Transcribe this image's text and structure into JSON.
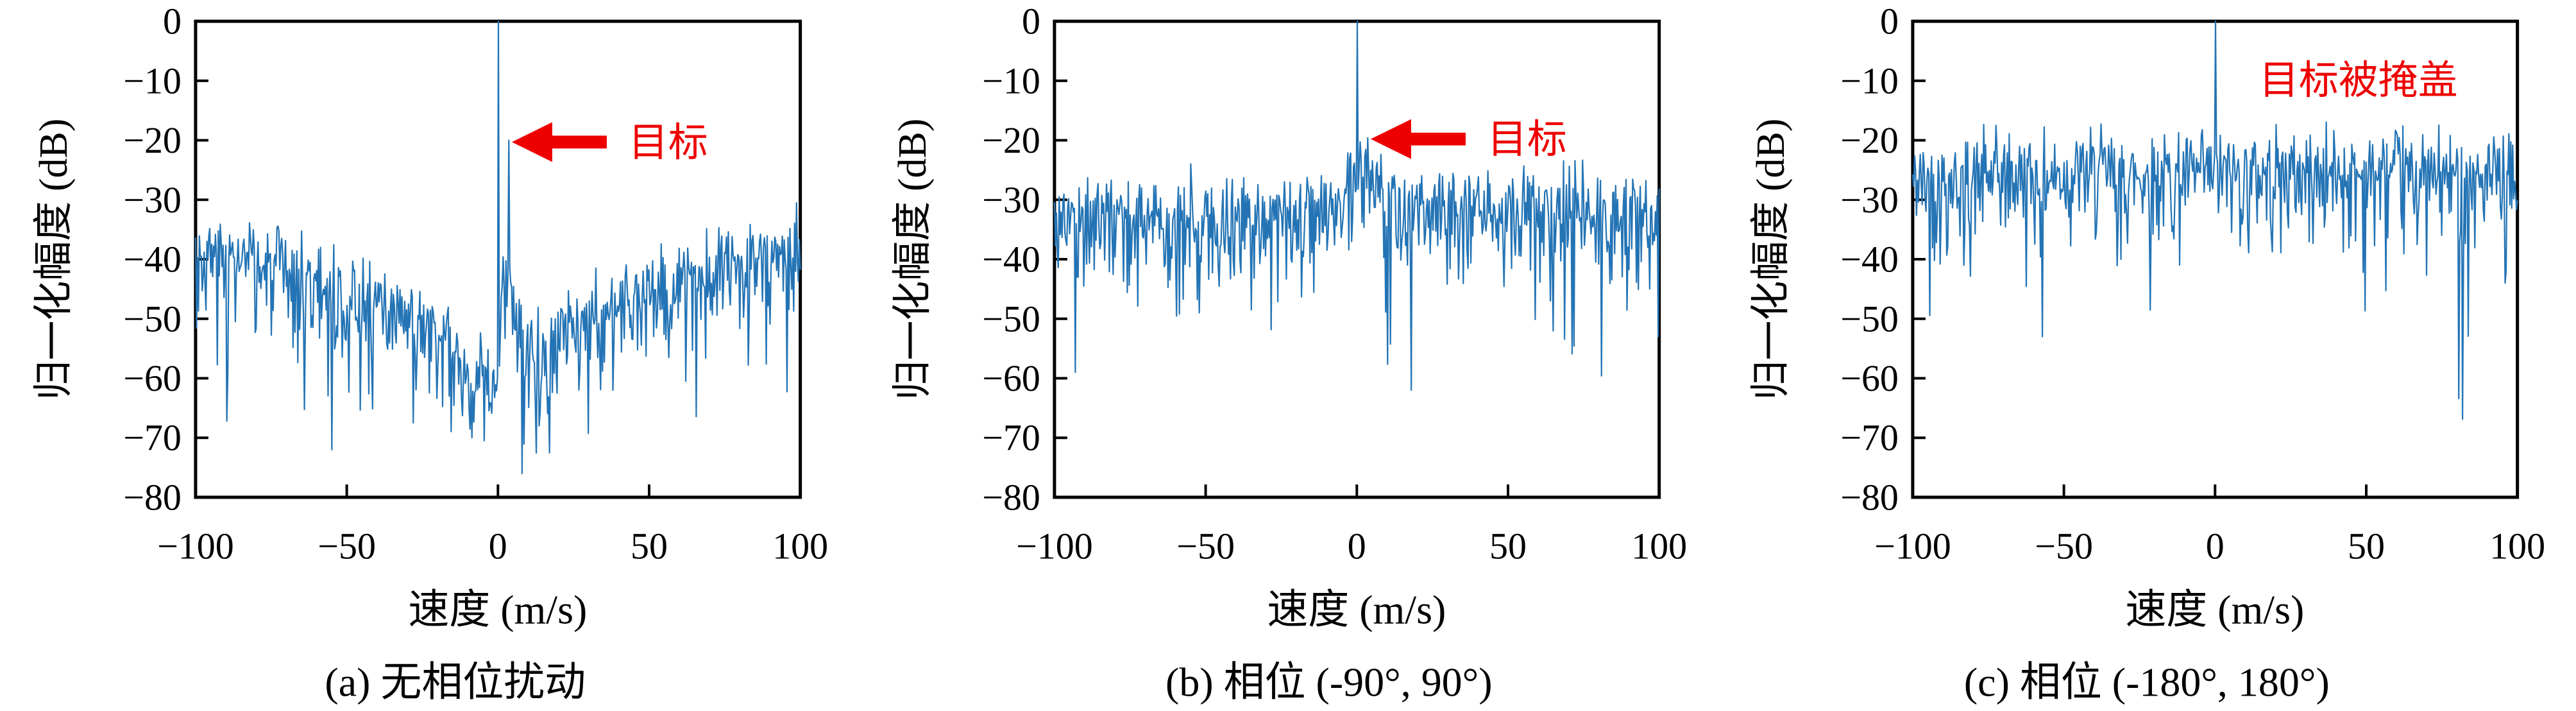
{
  "colors": {
    "trace": "#2474b5",
    "annotation": "#ee0000",
    "axis": "#000000",
    "background": "#ffffff"
  },
  "chart_data": [
    {
      "id": "a",
      "type": "line",
      "caption": "(a) 无相位扰动",
      "xlabel": "速度 (m/s)",
      "ylabel": "归一化幅度 (dB)",
      "xlim": [
        -100,
        100
      ],
      "ylim": [
        -80,
        0
      ],
      "xticks": [
        -100,
        -50,
        0,
        50,
        100
      ],
      "yticks": [
        0,
        -10,
        -20,
        -30,
        -40,
        -50,
        -60,
        -70,
        -80
      ],
      "grid": false,
      "annotation": {
        "text": "目标",
        "arrow": true,
        "target_xy": [
          4.6,
          -20.3
        ],
        "tail_x": 36
      },
      "peaks": [
        [
          0,
          0
        ],
        [
          3.7,
          -20
        ]
      ],
      "notches": [
        [
          -55,
          -72
        ],
        [
          -28,
          -67.5
        ],
        [
          -16,
          -63
        ],
        [
          -8.5,
          -70
        ],
        [
          -4.5,
          -70.5
        ],
        [
          8,
          -76
        ],
        [
          13.5,
          -68
        ],
        [
          38,
          -62
        ],
        [
          62,
          -60.5
        ]
      ],
      "noise": {
        "seed": 3,
        "points": 640,
        "envelope": [
          [
            -100,
            -37.5
          ],
          [
            -80,
            -40
          ],
          [
            -60,
            -43
          ],
          [
            -45,
            -46
          ],
          [
            -30,
            -49
          ],
          [
            -20,
            -52
          ],
          [
            -12,
            -56
          ],
          [
            -6,
            -59.5
          ],
          [
            -2,
            -61
          ],
          [
            -0.6,
            -60
          ],
          [
            0.6,
            -52
          ],
          [
            1.6,
            -44
          ],
          [
            3.7,
            -40
          ],
          [
            5,
            -47
          ],
          [
            8,
            -51
          ],
          [
            14,
            -53
          ],
          [
            22,
            -51
          ],
          [
            32,
            -48.5
          ],
          [
            45,
            -45.5
          ],
          [
            60,
            -43
          ],
          [
            80,
            -40
          ],
          [
            100,
            -37
          ]
        ]
      }
    },
    {
      "id": "b",
      "type": "line",
      "caption": "(b) 相位 (-90°, 90°)",
      "xlabel": "速度 (m/s)",
      "ylabel": "归一化幅度 (dB)",
      "xlim": [
        -100,
        100
      ],
      "ylim": [
        -80,
        0
      ],
      "xticks": [
        -100,
        -50,
        0,
        50,
        100
      ],
      "yticks": [
        0,
        -10,
        -20,
        -30,
        -40,
        -50,
        -60,
        -70,
        -80
      ],
      "grid": false,
      "annotation": {
        "text": "目标",
        "arrow": true,
        "target_xy": [
          4.6,
          -19.8
        ],
        "tail_x": 36
      },
      "peaks": [
        [
          0,
          0
        ],
        [
          3.7,
          -19.6
        ]
      ],
      "notches": [
        [
          -93,
          -59
        ],
        [
          -52,
          -49
        ],
        [
          -35,
          -48.5
        ],
        [
          18,
          -62
        ],
        [
          64,
          -47
        ],
        [
          99.6,
          -53
        ]
      ],
      "noise": {
        "seed": 17,
        "points": 640,
        "envelope": [
          [
            -100,
            -31
          ],
          [
            -60,
            -32
          ],
          [
            -30,
            -31.5
          ],
          [
            -8,
            -31
          ],
          [
            -1,
            -28
          ],
          [
            2,
            -26
          ],
          [
            6,
            -27.5
          ],
          [
            12,
            -30
          ],
          [
            40,
            -31.5
          ],
          [
            70,
            -32
          ],
          [
            100,
            -31
          ]
        ]
      }
    },
    {
      "id": "c",
      "type": "line",
      "caption": "(c) 相位 (-180°, 180°)",
      "xlabel": "速度 (m/s)",
      "ylabel": "归一化幅度 (dB)",
      "xlim": [
        -100,
        100
      ],
      "ylim": [
        -80,
        0
      ],
      "xticks": [
        -100,
        -50,
        0,
        50,
        100
      ],
      "yticks": [
        0,
        -10,
        -20,
        -30,
        -40,
        -50,
        -60,
        -70,
        -80
      ],
      "grid": false,
      "annotation": {
        "text": "目标被掩盖",
        "arrow": false
      },
      "peaks": [
        [
          0,
          0
        ]
      ],
      "notches": [
        [
          -83,
          -41
        ],
        [
          -57,
          -53
        ],
        [
          -31,
          -40
        ],
        [
          96,
          -44
        ]
      ],
      "noise": {
        "seed": 42,
        "points": 640,
        "envelope": [
          [
            -100,
            -25.5
          ],
          [
            -70,
            -24.5
          ],
          [
            -40,
            -24
          ],
          [
            -10,
            -24.5
          ],
          [
            20,
            -24
          ],
          [
            60,
            -24.5
          ],
          [
            100,
            -25.5
          ]
        ]
      }
    }
  ]
}
